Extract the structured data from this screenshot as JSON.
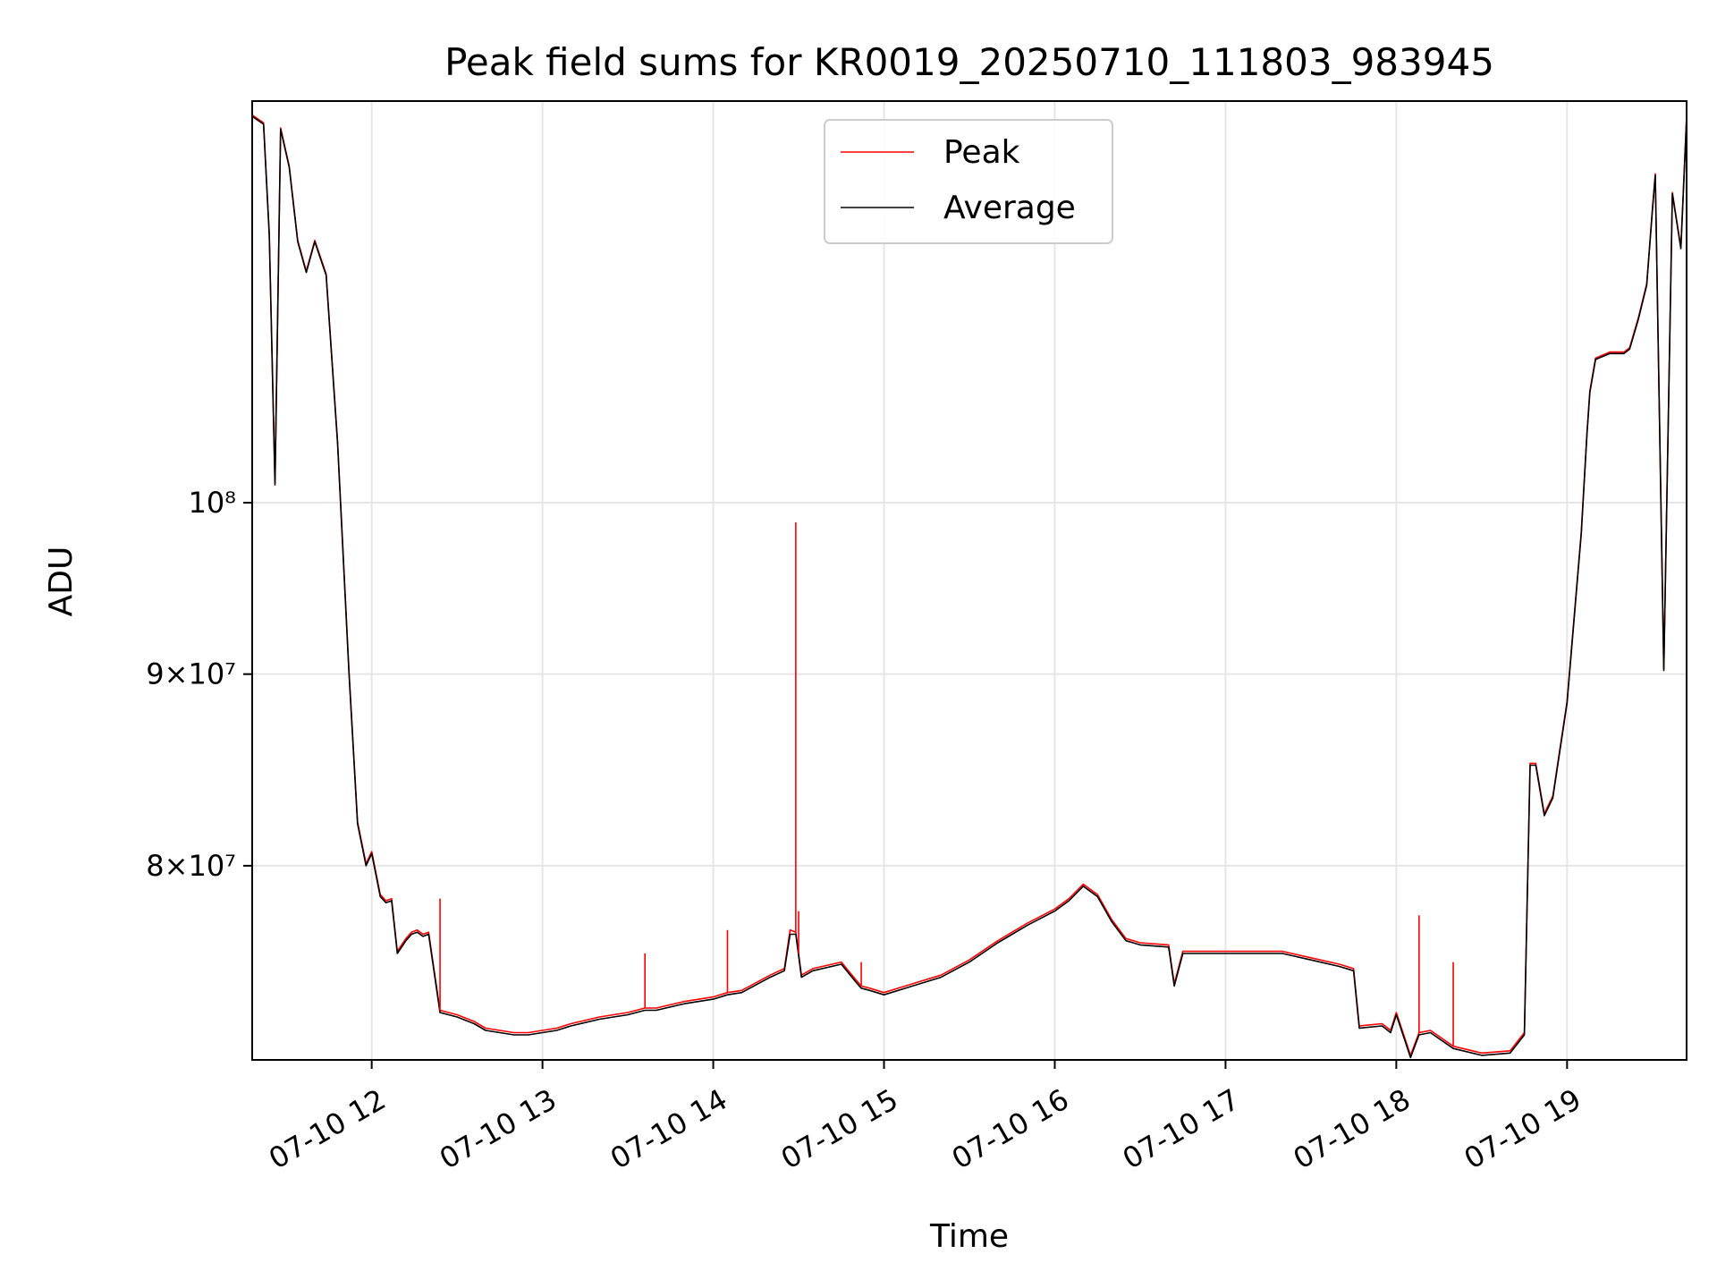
{
  "chart_data": {
    "type": "line",
    "title": "Peak field sums for KR0019_20250710_111803_983945",
    "xlabel": "Time",
    "ylabel": "ADU",
    "xlim": [
      "2025-07-10 11:18",
      "2025-07-10 19:42"
    ],
    "ylim": [
      71000000,
      128000000
    ],
    "yscale": "log",
    "grid": true,
    "legend_position": "top-center",
    "x_ticks": [
      "07-10 12",
      "07-10 13",
      "07-10 14",
      "07-10 15",
      "07-10 16",
      "07-10 17",
      "07-10 18",
      "07-10 19"
    ],
    "y_ticks": [
      {
        "value": 80000000,
        "label": "8×10⁷"
      },
      {
        "value": 90000000,
        "label": "9×10⁷"
      },
      {
        "value": 100000000,
        "label": "10⁸"
      }
    ],
    "x": [
      "11:18",
      "11:22",
      "11:24",
      "11:26",
      "11:28",
      "11:31",
      "11:34",
      "11:37",
      "11:40",
      "11:44",
      "11:48",
      "11:52",
      "11:55",
      "11:58",
      "12:00",
      "12:03",
      "12:05",
      "12:07",
      "12:09",
      "12:12",
      "12:14",
      "12:16",
      "12:18",
      "12:20",
      "12:24",
      "12:30",
      "12:36",
      "12:40",
      "12:45",
      "12:50",
      "12:55",
      "13:00",
      "13:05",
      "13:10",
      "13:20",
      "13:30",
      "13:36",
      "13:40",
      "13:50",
      "14:00",
      "14:05",
      "14:10",
      "14:20",
      "14:25",
      "14:27",
      "14:29",
      "14:31",
      "14:35",
      "14:45",
      "14:50",
      "14:52",
      "14:55",
      "15:00",
      "15:10",
      "15:20",
      "15:30",
      "15:40",
      "15:50",
      "16:00",
      "16:05",
      "16:10",
      "16:15",
      "16:20",
      "16:25",
      "16:30",
      "16:40",
      "16:42",
      "16:45",
      "17:00",
      "17:10",
      "17:20",
      "17:30",
      "17:40",
      "17:45",
      "17:47",
      "17:55",
      "17:58",
      "18:00",
      "18:05",
      "18:08",
      "18:12",
      "18:20",
      "18:30",
      "18:40",
      "18:45",
      "18:47",
      "18:49",
      "18:52",
      "18:55",
      "19:00",
      "19:05",
      "19:07",
      "19:08",
      "19:10",
      "19:15",
      "19:20",
      "19:22",
      "19:25",
      "19:28",
      "19:30",
      "19:31",
      "19:34",
      "19:37",
      "19:40",
      "19:42"
    ],
    "series": [
      {
        "name": "Peak",
        "color": "#ff0000",
        "values": [
          126900000,
          126300000,
          118000000,
          101200000,
          125900000,
          123000000,
          117500000,
          115300000,
          117500000,
          115100000,
          103800000,
          90200000,
          82200000,
          80100000,
          80700000,
          78600000,
          78300000,
          78400000,
          75900000,
          76500000,
          76800000,
          76900000,
          76700000,
          76800000,
          73200000,
          73000000,
          72700000,
          72400000,
          72300000,
          72200000,
          72200000,
          72300000,
          72400000,
          72600000,
          72900000,
          73100000,
          73300000,
          73300000,
          73600000,
          73800000,
          74000000,
          74100000,
          74800000,
          75100000,
          76900000,
          76800000,
          74800000,
          75100000,
          75400000,
          74600000,
          74300000,
          74200000,
          74000000,
          74400000,
          74800000,
          75500000,
          76400000,
          77200000,
          77900000,
          78400000,
          79100000,
          78600000,
          77400000,
          76500000,
          76300000,
          76200000,
          74400000,
          75900000,
          75900000,
          75900000,
          75900000,
          75600000,
          75300000,
          75100000,
          72500000,
          72600000,
          72300000,
          73100000,
          71200000,
          72200000,
          72300000,
          71600000,
          71300000,
          71400000,
          72200000,
          85200000,
          85200000,
          82600000,
          83500000,
          88500000,
          98200000,
          104400000,
          107100000,
          109300000,
          109700000,
          109700000,
          110000000,
          112000000,
          114400000,
          119800000,
          122400000,
          90300000,
          121000000,
          117000000,
          126800000
        ]
      },
      {
        "name": "Average",
        "color": "#000000",
        "values": [
          126800000,
          126200000,
          117900000,
          101100000,
          125800000,
          122900000,
          117400000,
          115200000,
          117400000,
          115000000,
          103700000,
          90100000,
          82100000,
          80000000,
          80600000,
          78500000,
          78200000,
          78300000,
          75800000,
          76400000,
          76700000,
          76800000,
          76600000,
          76700000,
          73100000,
          72900000,
          72600000,
          72300000,
          72200000,
          72100000,
          72100000,
          72200000,
          72300000,
          72500000,
          72800000,
          73000000,
          73200000,
          73200000,
          73500000,
          73700000,
          73900000,
          74000000,
          74700000,
          75000000,
          76700000,
          76700000,
          74700000,
          75000000,
          75300000,
          74500000,
          74200000,
          74100000,
          73900000,
          74300000,
          74700000,
          75400000,
          76300000,
          77100000,
          77800000,
          78300000,
          79000000,
          78500000,
          77300000,
          76400000,
          76200000,
          76100000,
          74300000,
          75800000,
          75800000,
          75800000,
          75800000,
          75500000,
          75200000,
          75000000,
          72400000,
          72500000,
          72200000,
          73000000,
          71100000,
          72100000,
          72200000,
          71500000,
          71200000,
          71300000,
          72100000,
          85100000,
          85100000,
          82500000,
          83400000,
          88400000,
          98100000,
          104300000,
          107000000,
          109200000,
          109600000,
          109600000,
          109900000,
          111900000,
          114300000,
          119700000,
          122300000,
          90200000,
          120900000,
          116900000,
          126700000
        ]
      }
    ],
    "spikes": [
      {
        "series": "Peak",
        "x": "12:24",
        "value": 78400000
      },
      {
        "series": "Peak",
        "x": "13:36",
        "value": 75800000
      },
      {
        "series": "Peak",
        "x": "14:05",
        "value": 76900000
      },
      {
        "series": "Peak",
        "x": "14:29",
        "value": 98800000
      },
      {
        "series": "Peak",
        "x": "14:30",
        "value": 77800000
      },
      {
        "series": "Peak",
        "x": "14:52",
        "value": 75400000
      },
      {
        "series": "Peak",
        "x": "18:08",
        "value": 77600000
      },
      {
        "series": "Peak",
        "x": "18:20",
        "value": 75400000
      }
    ]
  }
}
